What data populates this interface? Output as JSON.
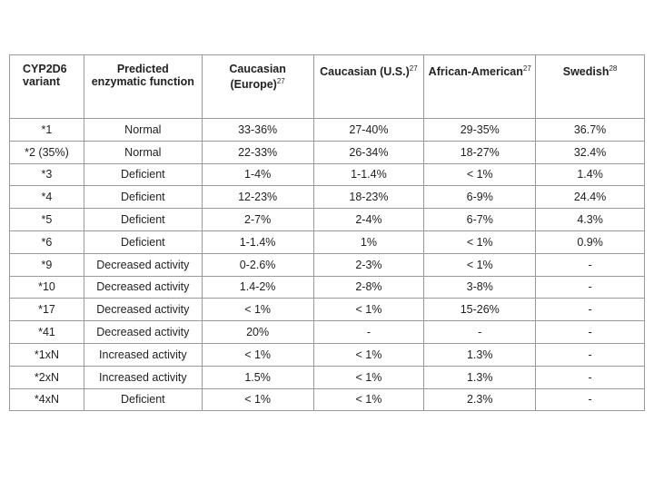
{
  "table": {
    "header": [
      "CYP2D6 variant",
      "Predicted enzymatic function",
      {
        "label": "Caucasian (Europe)",
        "ref": "27"
      },
      {
        "label": "Caucasian (U.S.)",
        "ref": "27"
      },
      {
        "label": "African-American",
        "ref": "27"
      },
      {
        "label": "Swedish",
        "ref": "28"
      }
    ],
    "rows": [
      [
        "*1",
        "Normal",
        "33-36%",
        "27-40%",
        "29-35%",
        "36.7%"
      ],
      [
        "*2 (35%)",
        "Normal",
        "22-33%",
        "26-34%",
        "18-27%",
        "32.4%"
      ],
      [
        "*3",
        "Deficient",
        "1-4%",
        "1-1.4%",
        "< 1%",
        "1.4%"
      ],
      [
        "*4",
        "Deficient",
        "12-23%",
        "18-23%",
        "6-9%",
        "24.4%"
      ],
      [
        "*5",
        "Deficient",
        "2-7%",
        "2-4%",
        "6-7%",
        "4.3%"
      ],
      [
        "*6",
        "Deficient",
        "1-1.4%",
        "1%",
        "< 1%",
        "0.9%"
      ],
      [
        "*9",
        "Decreased activity",
        "0-2.6%",
        "2-3%",
        "< 1%",
        "-"
      ],
      [
        "*10",
        "Decreased activity",
        "1.4-2%",
        "2-8%",
        "3-8%",
        "-"
      ],
      [
        "*17",
        "Decreased activity",
        "< 1%",
        "< 1%",
        "15-26%",
        "-"
      ],
      [
        "*41",
        "Decreased activity",
        "20%",
        "-",
        "-",
        "-"
      ],
      [
        "*1xN",
        "Increased activity",
        "< 1%",
        "< 1%",
        "1.3%",
        "-"
      ],
      [
        "*2xN",
        "Increased activity",
        "1.5%",
        "< 1%",
        "1.3%",
        "-"
      ],
      [
        "*4xN",
        "Deficient",
        "< 1%",
        "< 1%",
        "2.3%",
        "-"
      ]
    ]
  }
}
